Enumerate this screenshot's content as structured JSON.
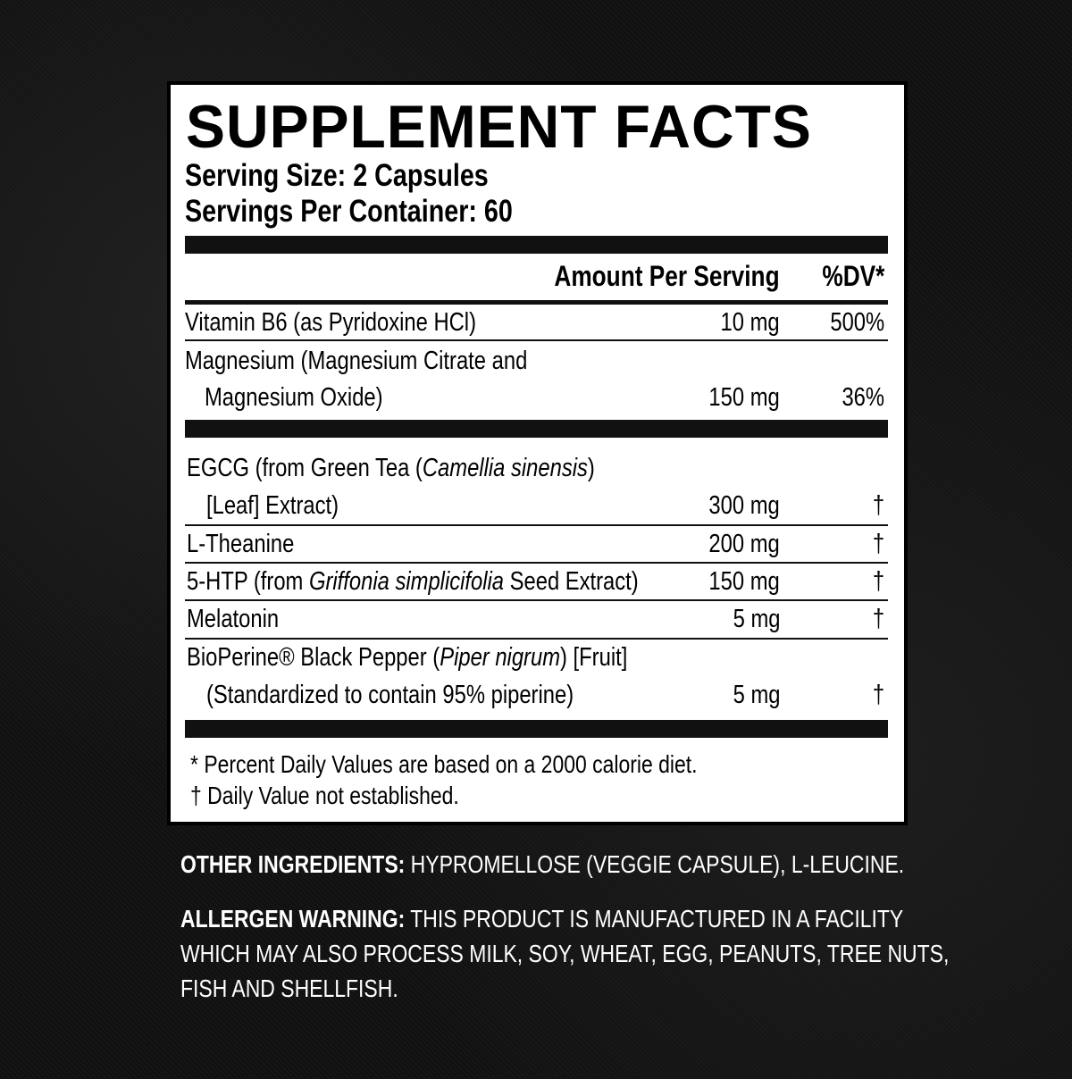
{
  "title": "SUPPLEMENT FACTS",
  "serving_size": "Serving Size: 2 Capsules",
  "servings_per_container": "Servings Per Container: 60",
  "columns": {
    "amount": "Amount Per Serving",
    "dv": "%DV*"
  },
  "vitamins": [
    {
      "name": "Vitamin B6 (as Pyridoxine HCl)",
      "amount": "10 mg",
      "dv": "500%"
    },
    {
      "name": "Magnesium (Magnesium Citrate and",
      "name2": "Magnesium Oxide)",
      "amount": "150 mg",
      "dv": "36%"
    }
  ],
  "ingredients": [
    {
      "pre": "EGCG (from Green Tea (",
      "italic": "Camellia sinensis",
      "post": ")",
      "name2": "[Leaf] Extract)",
      "amount": "300 mg",
      "dv": "†"
    },
    {
      "pre": "L-Theanine",
      "amount": "200 mg",
      "dv": "†"
    },
    {
      "pre": "5-HTP (from ",
      "italic": "Griffonia simplicifolia",
      "post": " Seed Extract)",
      "amount": "150 mg",
      "dv": "†"
    },
    {
      "pre": "Melatonin",
      "amount": "5 mg",
      "dv": "†"
    },
    {
      "pre": "BioPerine® Black Pepper (",
      "italic": "Piper nigrum",
      "post": ") [Fruit]",
      "name2": "(Standardized to contain 95% piperine)",
      "amount": "5 mg",
      "dv": "†"
    }
  ],
  "footnotes": [
    "* Percent Daily Values are based on a 2000 calorie diet.",
    "† Daily Value not established."
  ],
  "other_ingredients": {
    "label": "OTHER INGREDIENTS:",
    "text": " HYPROMELLOSE (VEGGIE CAPSULE), L-LEUCINE."
  },
  "allergen": {
    "label": "ALLERGEN WARNING:",
    "line1": " THIS PRODUCT IS MANUFACTURED IN A FACILITY",
    "line2": "WHICH MAY ALSO PROCESS MILK, SOY, WHEAT, EGG, PEANUTS, TREE NUTS,",
    "line3": "FISH AND SHELLFISH."
  }
}
